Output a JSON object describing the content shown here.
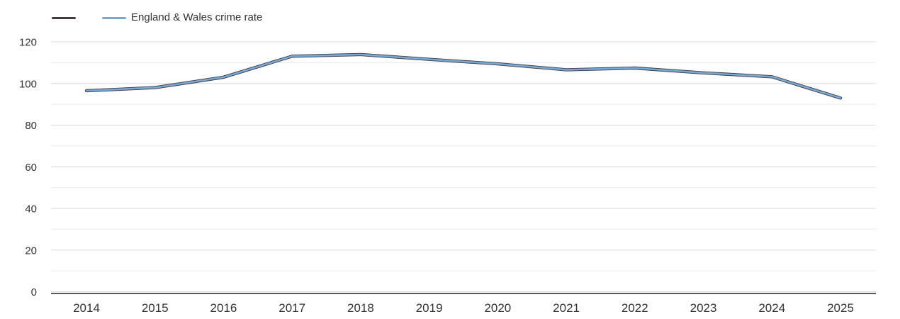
{
  "legend": {
    "items": [
      {
        "label": "",
        "color": "#463a41"
      },
      {
        "label": "England & Wales crime rate",
        "color": "#76a9d3"
      }
    ]
  },
  "chart_data": {
    "type": "line",
    "title": "",
    "xlabel": "",
    "ylabel": "",
    "x": [
      2014,
      2015,
      2016,
      2017,
      2018,
      2019,
      2020,
      2021,
      2022,
      2023,
      2024,
      2025
    ],
    "series": [
      {
        "name": "",
        "color": "#463a41",
        "values": [
          96.5,
          98,
          103,
          113.1,
          113.9,
          111.6,
          109.4,
          106.6,
          107.4,
          105.1,
          103.2,
          93
        ]
      },
      {
        "name": "England & Wales crime rate",
        "color": "#76a9d3",
        "values": [
          96.5,
          98,
          103,
          113.1,
          113.9,
          111.6,
          109.4,
          106.6,
          107.4,
          105.1,
          103.2,
          93
        ]
      }
    ],
    "ylim": [
      0,
      120
    ],
    "yticks": [
      0,
      20,
      40,
      60,
      80,
      100,
      120
    ],
    "minor_grid_step": 10,
    "grid": true,
    "legend_position": "top-left"
  },
  "colors": {
    "axis_line": "#222222",
    "major_gridline": "#d9d9d9",
    "minor_gridline": "#ececec",
    "tick_label": "#333333"
  }
}
